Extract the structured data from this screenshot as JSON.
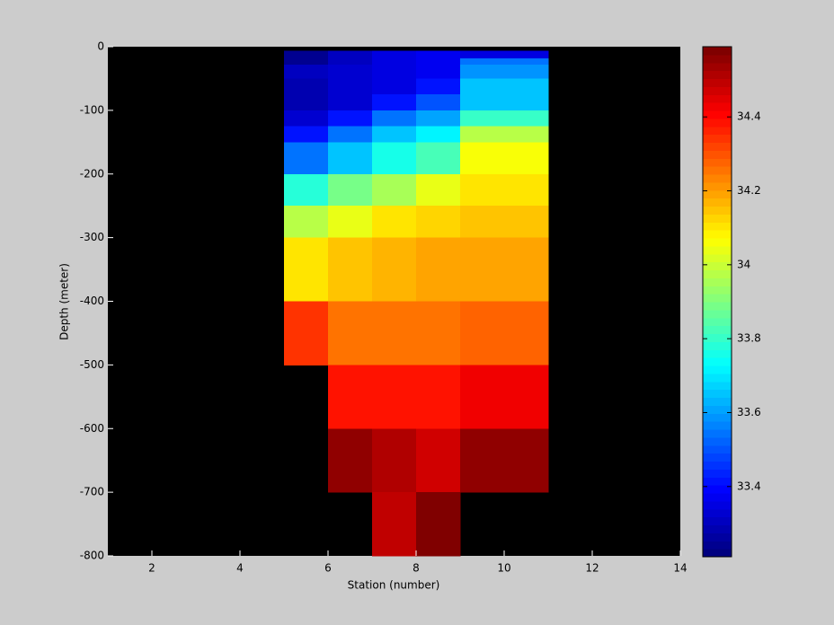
{
  "chart_data": {
    "type": "heatmap",
    "xlabel": "Station (number)",
    "ylabel": "Depth (meter)",
    "x_edges": [
      5,
      6,
      7,
      8,
      9,
      11
    ],
    "y_edges": [
      -6,
      -18,
      -28,
      -50,
      -75,
      -100,
      -125,
      -150,
      -200,
      -250,
      -300,
      -400,
      -500,
      -600,
      -700,
      -800
    ],
    "values": [
      [
        33.25,
        33.3,
        33.35,
        33.38,
        33.35
      ],
      [
        33.25,
        33.3,
        33.35,
        33.38,
        33.55
      ],
      [
        33.3,
        33.32,
        33.36,
        33.38,
        33.58
      ],
      [
        33.28,
        33.32,
        33.36,
        33.42,
        33.65
      ],
      [
        33.28,
        33.32,
        33.42,
        33.5,
        33.65
      ],
      [
        33.32,
        33.42,
        33.55,
        33.6,
        33.8
      ],
      [
        33.42,
        33.55,
        33.65,
        33.72,
        33.98
      ],
      [
        33.55,
        33.65,
        33.75,
        33.82,
        34.07
      ],
      [
        33.78,
        33.88,
        33.95,
        34.05,
        34.1
      ],
      [
        33.98,
        34.05,
        34.1,
        34.12,
        34.15
      ],
      [
        34.1,
        34.15,
        34.17,
        34.2,
        34.2
      ],
      [
        34.35,
        34.25,
        34.25,
        34.25,
        34.28
      ],
      [
        null,
        34.38,
        34.38,
        34.38,
        34.42
      ],
      [
        null,
        34.55,
        34.52,
        34.48,
        34.55
      ],
      [
        null,
        null,
        34.5,
        34.58,
        null
      ]
    ],
    "xlim": [
      1,
      14
    ],
    "xticks": [
      2,
      4,
      6,
      8,
      10,
      12,
      14
    ],
    "ylim": [
      -800,
      0
    ],
    "yticks": [
      0,
      -100,
      -200,
      -300,
      -400,
      -500,
      -600,
      -700,
      -800
    ],
    "colormap": "jet",
    "colormap_levels": 64,
    "clim": [
      33.21,
      34.59
    ],
    "cticks": [
      33.4,
      33.6,
      33.8,
      34,
      34.2,
      34.4
    ],
    "background": "#000000"
  }
}
